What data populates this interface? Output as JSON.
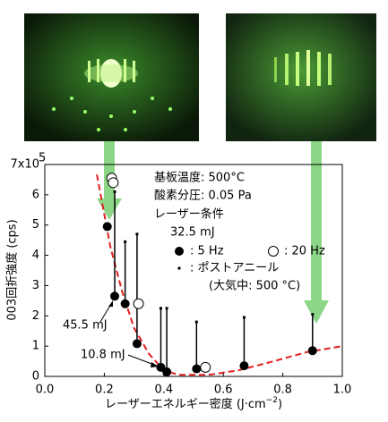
{
  "chart_data": {
    "type": "scatter",
    "x_label": "レーザーエネルギー密度 (J·cm",
    "x_label_exp": "−2",
    "x_label_end": ")",
    "y_label": "003回折強度 (cps)",
    "xlim": [
      0,
      1.0
    ],
    "xticks": [
      {
        "value": 0,
        "label": "0.0"
      },
      0.2,
      0.4,
      0.6,
      0.8,
      {
        "value": 1,
        "label": "1.0"
      }
    ],
    "ylim": [
      0,
      7
    ],
    "yticks": [
      0,
      1,
      2,
      3,
      4,
      5,
      6,
      {
        "value": 7,
        "label": "7x10"
      }
    ],
    "y_exponent": "5",
    "series": [
      {
        "name": ": 5 Hz",
        "marker": "filled",
        "color": "#000000",
        "x": [
          0.21,
          0.235,
          0.27,
          0.31,
          0.39,
          0.41,
          0.51,
          0.67,
          0.9
        ],
        "values": [
          4.95,
          2.65,
          2.4,
          1.08,
          0.3,
          0.15,
          0.25,
          0.35,
          0.85
        ]
      },
      {
        "name": ": 20 Hz",
        "marker": "open",
        "color": "#000000",
        "x": [
          0.225,
          0.23,
          0.315,
          0.54
        ],
        "values": [
          6.55,
          6.4,
          2.4,
          0.3
        ]
      },
      {
        "name": ": ポストアニール",
        "marker": "square",
        "color": "#000000",
        "x": [
          0.21,
          0.235,
          0.27,
          0.31,
          0.39,
          0.41,
          0.51,
          0.67,
          0.9
        ],
        "values": [
          null,
          6.1,
          4.45,
          4.7,
          2.25,
          2.25,
          1.8,
          1.95,
          2.05
        ]
      }
    ],
    "guide_curve": {
      "color": "#e02020",
      "x": [
        0.175,
        0.22,
        0.26,
        0.3,
        0.35,
        0.4,
        0.45,
        0.55,
        0.65,
        0.75,
        0.88,
        1.0
      ],
      "values": [
        6.67,
        4.3,
        2.8,
        1.6,
        0.75,
        0.2,
        0.05,
        0.05,
        0.2,
        0.45,
        0.8,
        1.0
      ]
    },
    "annotations": {
      "substrate": "基板温度: 500°C",
      "oxygen": "酸素分圧: 0.05 Pa",
      "laser": "レーザー条件",
      "energy": "32.5 mJ",
      "anneal": "(大気中: 500 °C)",
      "point_a": "45.5 mJ",
      "point_b": "10.8 mJ"
    }
  }
}
